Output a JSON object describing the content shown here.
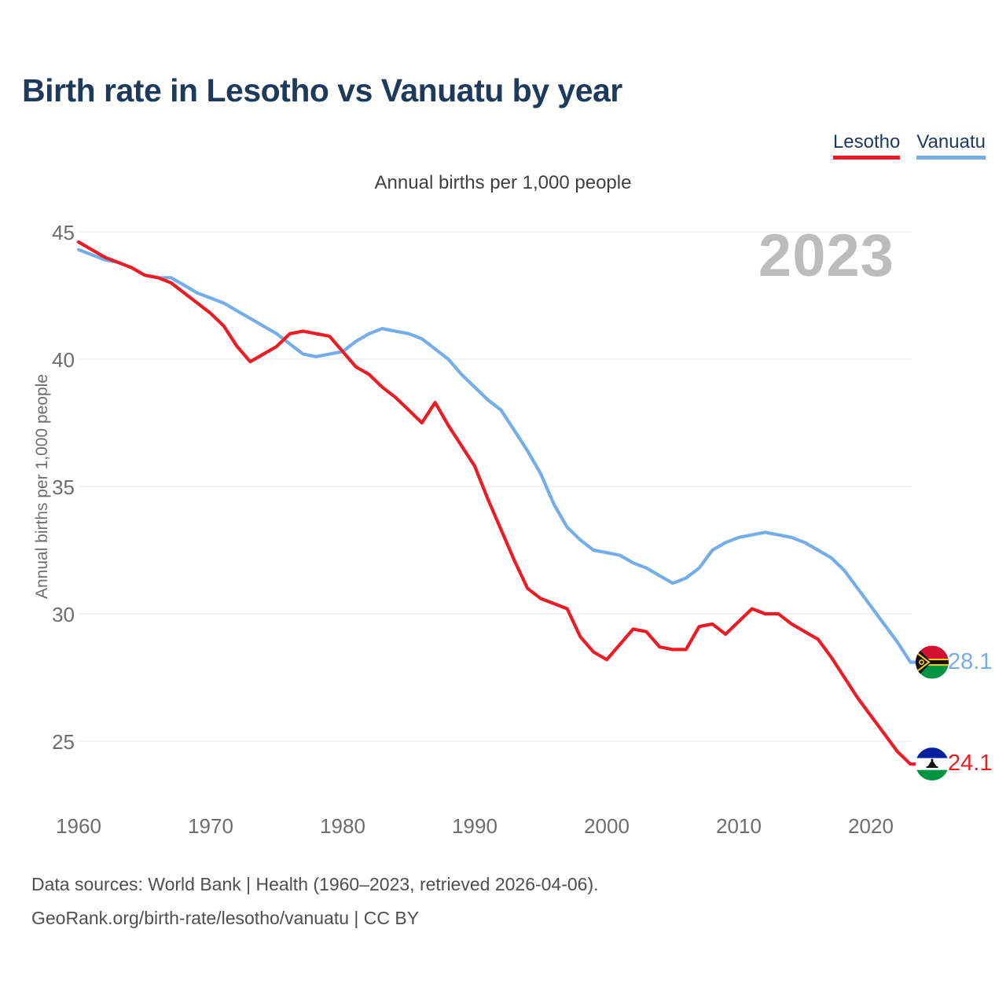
{
  "title": "Birth rate in Lesotho vs Vanuatu by year",
  "subtitle": "Annual births per 1,000 people",
  "watermark": "2023",
  "legend": {
    "items": [
      {
        "label": "Lesotho",
        "color": "#ED1C24"
      },
      {
        "label": "Vanuatu",
        "color": "#74ADE8"
      }
    ]
  },
  "end_labels": {
    "vanuatu": "28.1",
    "lesotho": "24.1"
  },
  "footer": {
    "sources": "Data sources: World Bank | Health (1960–2023, retrieved 2026-04-06).",
    "attribution": "GeoRank.org/birth-rate/lesotho/vanuatu | CC BY"
  },
  "chart_data": {
    "type": "line",
    "title": "Birth rate in Lesotho vs Vanuatu by year",
    "subtitle": "Annual births per 1,000 people",
    "ylabel": "Annual births per 1,000 people",
    "xlabel": "",
    "grid": true,
    "legend_position": "top-right",
    "ylim": [
      23.5,
      45.6
    ],
    "yticks": [
      25,
      30,
      35,
      40,
      45
    ],
    "xticks": [
      1960,
      1970,
      1980,
      1990,
      2000,
      2010,
      2020
    ],
    "x": [
      1960,
      1961,
      1962,
      1963,
      1964,
      1965,
      1966,
      1967,
      1968,
      1969,
      1970,
      1971,
      1972,
      1973,
      1974,
      1975,
      1976,
      1977,
      1978,
      1979,
      1980,
      1981,
      1982,
      1983,
      1984,
      1985,
      1986,
      1987,
      1988,
      1989,
      1990,
      1991,
      1992,
      1993,
      1994,
      1995,
      1996,
      1997,
      1998,
      1999,
      2000,
      2001,
      2002,
      2003,
      2004,
      2005,
      2006,
      2007,
      2008,
      2009,
      2010,
      2011,
      2012,
      2013,
      2014,
      2015,
      2016,
      2017,
      2018,
      2019,
      2020,
      2021,
      2022,
      2023
    ],
    "series": [
      {
        "name": "Vanuatu",
        "color": "#74ADE8",
        "flag": "vanuatu",
        "end_value": 28.1,
        "values": [
          44.3,
          44.1,
          43.9,
          43.8,
          43.6,
          43.3,
          43.2,
          43.2,
          42.9,
          42.6,
          42.4,
          42.2,
          41.9,
          41.6,
          41.3,
          41.0,
          40.6,
          40.2,
          40.1,
          40.2,
          40.3,
          40.7,
          41.0,
          41.2,
          41.1,
          41.0,
          40.8,
          40.4,
          40.0,
          39.4,
          38.9,
          38.4,
          38.0,
          37.2,
          36.4,
          35.5,
          34.3,
          33.4,
          32.9,
          32.5,
          32.4,
          32.3,
          32.0,
          31.8,
          31.5,
          31.2,
          31.4,
          31.8,
          32.5,
          32.8,
          33.0,
          33.1,
          33.2,
          33.1,
          33.0,
          32.8,
          32.5,
          32.2,
          31.7,
          31.0,
          30.3,
          29.6,
          28.9,
          28.1
        ]
      },
      {
        "name": "Lesotho",
        "color": "#ED1C24",
        "flag": "lesotho",
        "end_value": 24.1,
        "values": [
          44.6,
          44.3,
          44.0,
          43.8,
          43.6,
          43.3,
          43.2,
          43.0,
          42.6,
          42.2,
          41.8,
          41.3,
          40.5,
          39.9,
          40.2,
          40.5,
          41.0,
          41.1,
          41.0,
          40.9,
          40.3,
          39.7,
          39.4,
          38.9,
          38.5,
          38.0,
          37.5,
          38.3,
          37.4,
          36.6,
          35.8,
          34.5,
          33.3,
          32.1,
          31.0,
          30.6,
          30.4,
          30.2,
          29.1,
          28.5,
          28.2,
          28.8,
          29.4,
          29.3,
          28.7,
          28.6,
          28.6,
          29.5,
          29.6,
          29.2,
          29.7,
          30.2,
          30.0,
          30.0,
          29.6,
          29.3,
          29.0,
          28.3,
          27.5,
          26.7,
          26.0,
          25.3,
          24.6,
          24.1
        ]
      }
    ]
  }
}
